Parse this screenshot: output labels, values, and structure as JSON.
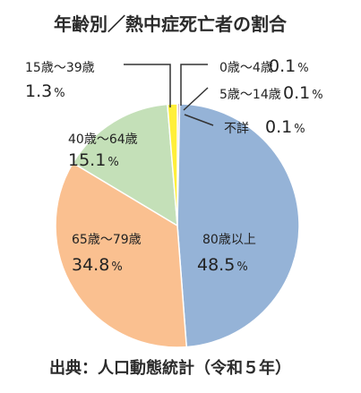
{
  "chart_data": {
    "type": "pie",
    "title": "年齢別／熱中症死亡者の割合",
    "source": "出典：人口動態統計（令和５年）",
    "unit": "%",
    "slices": [
      {
        "label": "0歳～4歳",
        "value": 0.1,
        "color": "#c0504d"
      },
      {
        "label": "5歳～14歳",
        "value": 0.1,
        "color": "#9b6fb0"
      },
      {
        "label": "不詳",
        "value": 0.1,
        "color": "#f07c3a"
      },
      {
        "label": "80歳以上",
        "value": 48.5,
        "color": "#95b3d7"
      },
      {
        "label": "65歳～79歳",
        "value": 34.8,
        "color": "#fac090"
      },
      {
        "label": "40歳～64歳",
        "value": 15.1,
        "color": "#c4e0b8"
      },
      {
        "label": "15歳～39歳",
        "value": 1.3,
        "color": "#ffef3a"
      }
    ]
  }
}
